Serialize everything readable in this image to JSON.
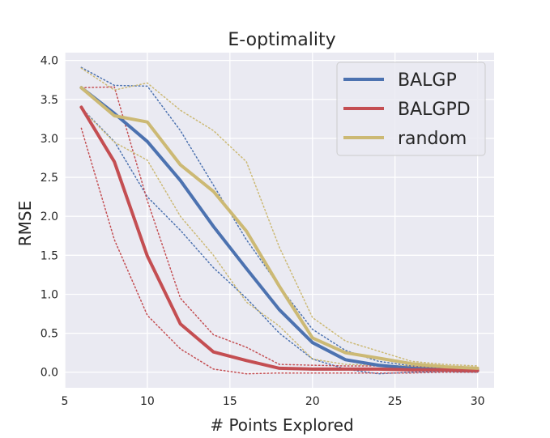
{
  "chart_data": {
    "type": "line",
    "title": "E-optimality",
    "xlabel": "# Points Explored",
    "ylabel": "RMSE",
    "xlim": [
      5,
      31
    ],
    "ylim": [
      -0.2,
      4.1
    ],
    "xticks": [
      5,
      10,
      15,
      20,
      25,
      30
    ],
    "yticks": [
      0.0,
      0.5,
      1.0,
      1.5,
      2.0,
      2.5,
      3.0,
      3.5,
      4.0
    ],
    "xtick_labels": [
      "5",
      "10",
      "15",
      "20",
      "25",
      "30"
    ],
    "ytick_labels": [
      "0.0",
      "0.5",
      "1.0",
      "1.5",
      "2.0",
      "2.5",
      "3.0",
      "3.5",
      "4.0"
    ],
    "grid": true,
    "legend_position": "upper right",
    "x": [
      6,
      8,
      10,
      12,
      14,
      16,
      18,
      20,
      22,
      24,
      26,
      28,
      30
    ],
    "series": [
      {
        "name": "BALGP",
        "color": "#4c72b0",
        "values": [
          3.65,
          3.32,
          2.96,
          2.46,
          1.87,
          1.33,
          0.8,
          0.38,
          0.16,
          0.09,
          0.05,
          0.03,
          0.02
        ],
        "upper": [
          3.91,
          3.68,
          3.67,
          3.1,
          2.4,
          1.7,
          1.1,
          0.55,
          0.28,
          0.14,
          0.08,
          0.05,
          0.04
        ],
        "lower": [
          3.39,
          2.96,
          2.25,
          1.82,
          1.34,
          0.95,
          0.5,
          0.17,
          0.04,
          -0.02,
          0.0,
          0.01,
          0.0
        ]
      },
      {
        "name": "BALGPD",
        "color": "#c44e52",
        "values": [
          3.4,
          2.7,
          1.49,
          0.62,
          0.26,
          0.15,
          0.05,
          0.04,
          0.04,
          0.04,
          0.03,
          0.03,
          0.02
        ],
        "upper": [
          3.65,
          3.66,
          2.2,
          0.95,
          0.48,
          0.32,
          0.1,
          0.09,
          0.08,
          0.08,
          0.07,
          0.06,
          0.05
        ],
        "lower": [
          3.13,
          1.7,
          0.73,
          0.3,
          0.04,
          -0.02,
          -0.01,
          -0.01,
          -0.01,
          -0.01,
          -0.01,
          0.0,
          0.0
        ]
      },
      {
        "name": "random",
        "color": "#ccb974",
        "values": [
          3.65,
          3.29,
          3.21,
          2.66,
          2.32,
          1.81,
          1.1,
          0.44,
          0.25,
          0.18,
          0.11,
          0.07,
          0.05
        ],
        "upper": [
          3.9,
          3.62,
          3.71,
          3.36,
          3.1,
          2.7,
          1.6,
          0.7,
          0.4,
          0.27,
          0.14,
          0.1,
          0.08
        ],
        "lower": [
          3.38,
          2.95,
          2.72,
          2.0,
          1.5,
          0.9,
          0.59,
          0.17,
          0.1,
          0.09,
          0.08,
          0.05,
          0.03
        ]
      }
    ]
  }
}
